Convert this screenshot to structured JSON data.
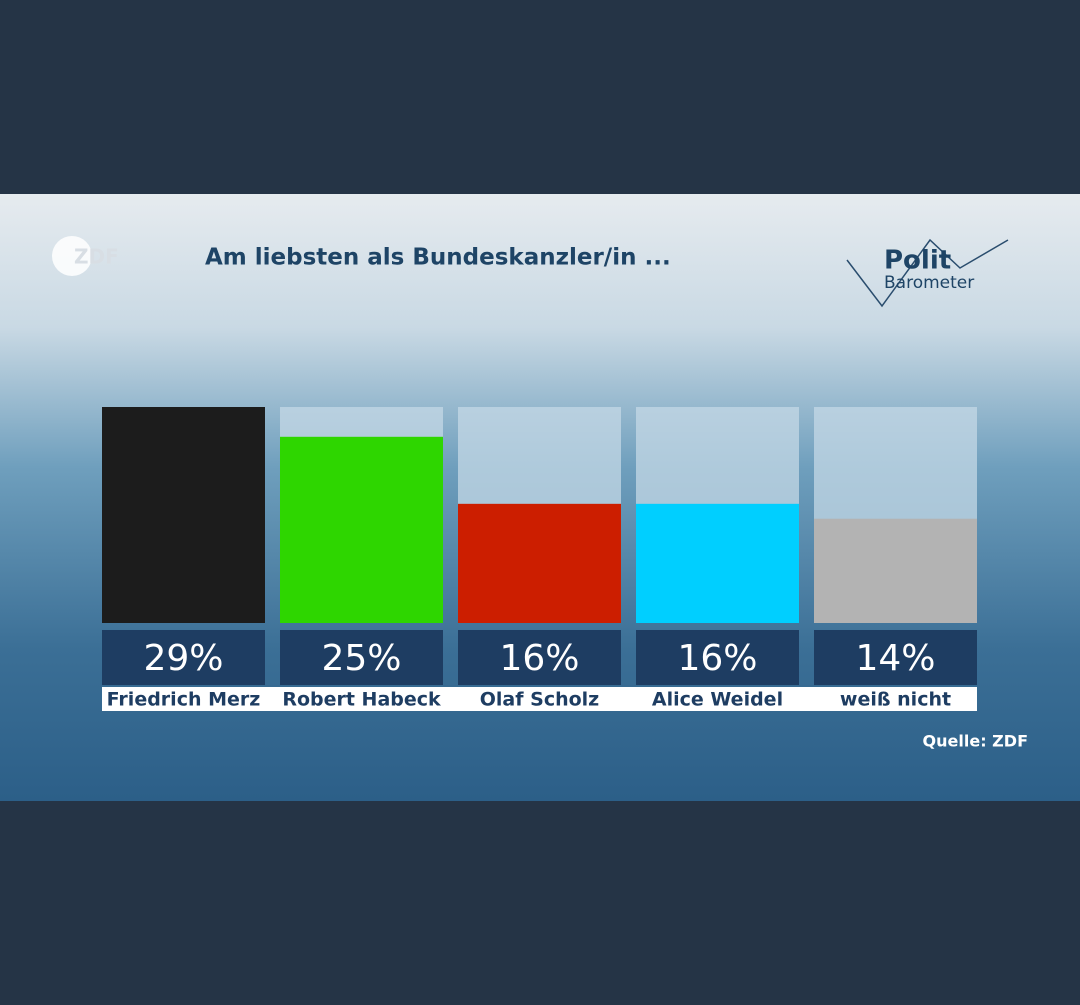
{
  "chart_data": {
    "type": "bar",
    "title": "Am liebsten als Bundeskanzler/in ...",
    "brand": "ZDF",
    "logo_top": "Polit",
    "logo_bottom": "Barometer",
    "source": "Quelle: ZDF",
    "categories": [
      "Friedrich Merz",
      "Robert Habeck",
      "Olaf Scholz",
      "Alice Weidel",
      "weiß nicht"
    ],
    "values": [
      29,
      25,
      16,
      16,
      14
    ],
    "value_labels": [
      "29%",
      "25%",
      "16%",
      "16%",
      "14%"
    ],
    "colors": [
      "#1c1c1c",
      "#2ed600",
      "#cc1e00",
      "#00cfff",
      "#b3b3b3"
    ],
    "ylim": [
      0,
      29
    ]
  }
}
